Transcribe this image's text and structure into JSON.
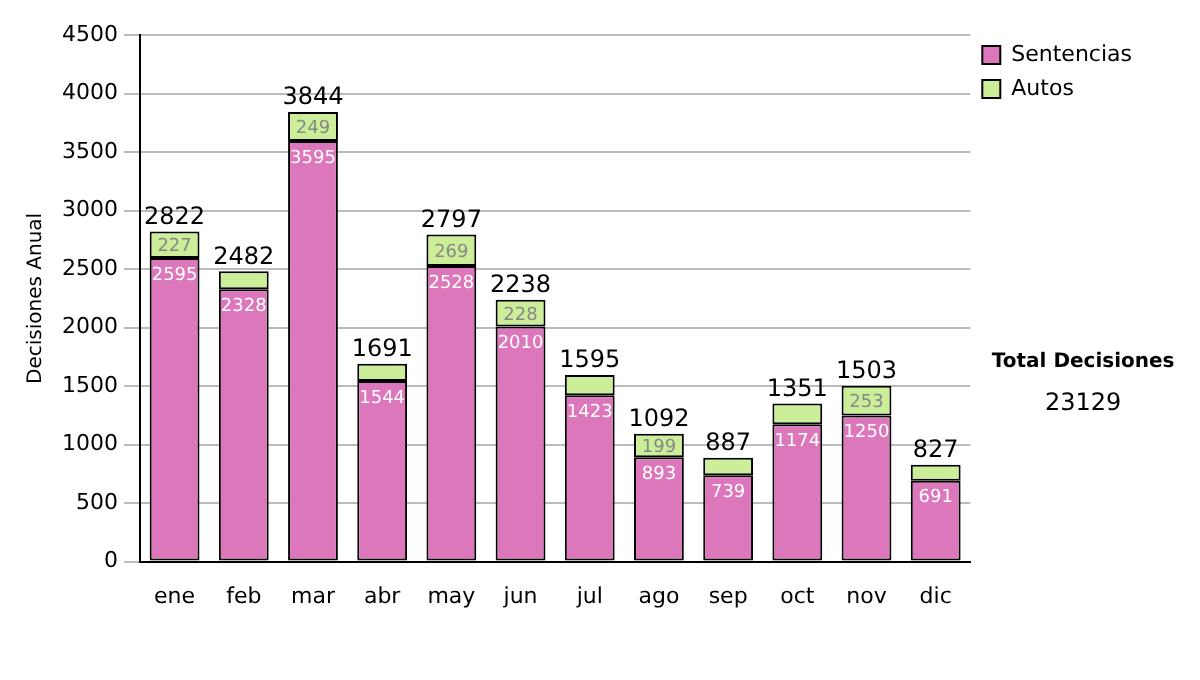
{
  "chart_data": {
    "type": "bar",
    "ylabel": "Decisiones Anual",
    "categories": [
      "ene",
      "feb",
      "mar",
      "abr",
      "may",
      "jun",
      "jul",
      "ago",
      "sep",
      "oct",
      "nov",
      "dic"
    ],
    "series": [
      {
        "name": "Sentencias",
        "color": "#dd77bb",
        "values": [
          2595,
          2328,
          3595,
          1544,
          2528,
          2010,
          1423,
          893,
          739,
          1174,
          1250,
          691
        ],
        "value_labels": [
          "2595",
          "2328",
          "3595",
          "1544",
          "2528",
          "2010",
          "1423",
          "893",
          "739",
          "1174",
          "1250",
          "691"
        ]
      },
      {
        "name": "Autos",
        "color": "#ccee99",
        "values": [
          227,
          154,
          249,
          147,
          269,
          228,
          172,
          199,
          148,
          177,
          253,
          136
        ],
        "value_labels": [
          "227",
          null,
          "249",
          null,
          "269",
          "228",
          null,
          "199",
          null,
          null,
          "253",
          null
        ]
      }
    ],
    "stacked": true,
    "totals": [
      "2822",
      "2482",
      "3844",
      "1691",
      "2797",
      "2238",
      "1595",
      "1092",
      "887",
      "1351",
      "1503",
      "827"
    ],
    "ylim": [
      0,
      4500
    ],
    "yticks": [
      0,
      500,
      1000,
      1500,
      2000,
      2500,
      3000,
      3500,
      4000,
      4500
    ],
    "grid": "y",
    "legend": "right",
    "annotations": [
      "Total Decisiones",
      "23129"
    ]
  }
}
